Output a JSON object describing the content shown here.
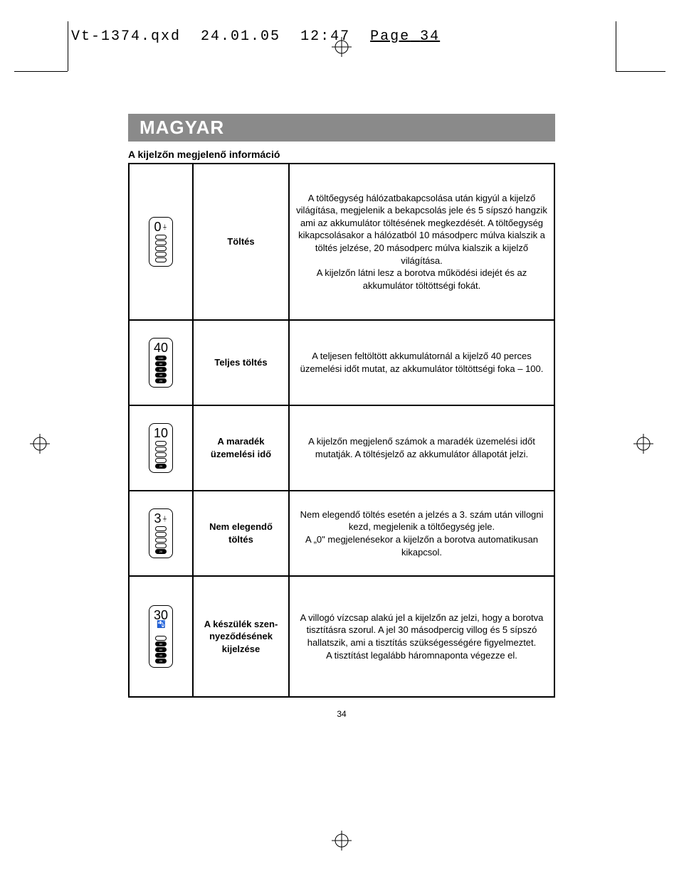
{
  "header": {
    "filename": "Vt-1374.qxd",
    "date": "24.01.05",
    "time": "12:47",
    "page_label": "Page",
    "page_in_header": "34"
  },
  "language_banner": "MAGYAR",
  "section_title": "A kijelzőn megjelenő információ",
  "rows": [
    {
      "icon_number": "0",
      "icon_plug": true,
      "icon_tap": false,
      "bars_filled": [],
      "bars_total": 5,
      "bar_labels": [],
      "label": "Töltés",
      "desc": "A töltőegység hálózatbakapcsolása után kigyúl a kijelző világítása, megjelenik a bekapcsolás jele és 5 sípszó hangzik ami az akkumulátor töltésének megkezdését. A töltőegység kikapcsolásakor a hálózatból 10 másodperc múlva kialszik a töltés jelzése, 20 másodperc múlva kialszik a kijelző világítása.\nA kijelzőn látni lesz a borotva működési idejét és az akkumulátor töltöttségi fokát.",
      "row_class": "row-tall"
    },
    {
      "icon_number": "40",
      "icon_plug": false,
      "icon_tap": false,
      "bars_filled": [
        0,
        1,
        2,
        3,
        4
      ],
      "bars_total": 5,
      "bar_labels": [
        "100",
        "80",
        "60",
        "40",
        "20"
      ],
      "label": "Teljes töltés",
      "desc": "A teljesen feltöltött akkumulátornál a kijelző 40 perces üzemelési időt mutat, az akkumulátor töltöttségi foka – 100.",
      "row_class": "row-med"
    },
    {
      "icon_number": "10",
      "icon_plug": false,
      "icon_tap": false,
      "bars_filled": [
        4
      ],
      "bars_total": 5,
      "bar_labels": [
        "",
        "",
        "",
        "",
        "20"
      ],
      "label": "A maradék üzemelési idő",
      "desc": "A kijelzőn megjelenő számok a maradék üzemelési időt mutatják. A töltésjelző az akkumulátor állapotát jelzi.",
      "row_class": "row-med"
    },
    {
      "icon_number": "3",
      "icon_plug": true,
      "icon_tap": false,
      "bars_filled": [
        4
      ],
      "bars_total": 5,
      "bar_labels": [
        "",
        "",
        "",
        "",
        "20"
      ],
      "label": "Nem elegendő töltés",
      "desc": "Nem elegendő töltés esetén a jelzés a 3. szám után villogni kezd, megjelenik a töltőegység jele.\nA „0\" megjelenésekor a kijelzőn a borotva automatikusan kikapcsol.",
      "row_class": "row-med"
    },
    {
      "icon_number": "30",
      "icon_plug": false,
      "icon_tap": true,
      "bars_filled": [
        1,
        2,
        3,
        4
      ],
      "bars_total": 5,
      "bar_labels": [
        "",
        "80",
        "60",
        "40",
        "20"
      ],
      "label": "A készülék szennyeződésének kijelzése",
      "desc": "A villogó vízcsap alakú jel a kijelzőn az jelzi, hogy a borotva tisztításra szorul. A jel 30 másodpercig villog és 5 sípszó hallatszik, ami a tisztítás szükségességére figyelmeztet.\nA tisztítást legalább háromnaponta végezze el.",
      "row_class": "row-contam"
    }
  ],
  "page_number": "34",
  "colors": {
    "banner_bg": "#8a8a8a",
    "banner_text": "#ffffff",
    "border": "#000000",
    "text": "#000000",
    "background": "#ffffff"
  }
}
